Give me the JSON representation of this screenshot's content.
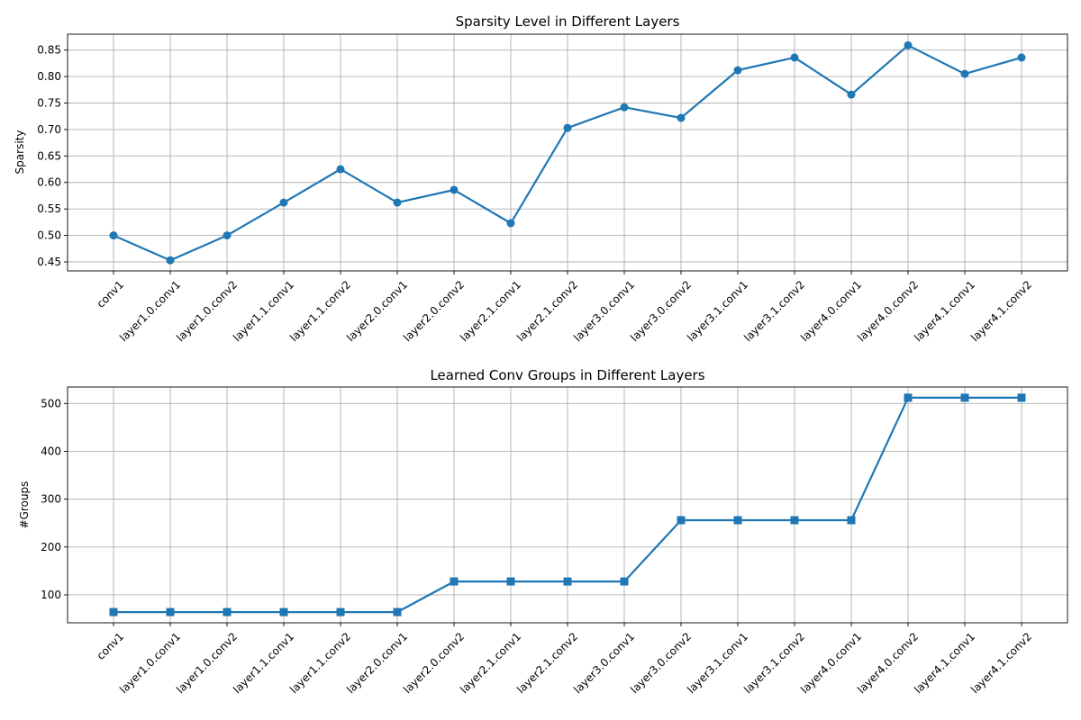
{
  "colors": {
    "series": "#1f77b4",
    "grid": "#b0b0b0"
  },
  "chart_data": [
    {
      "type": "line",
      "title": "Sparsity Level in Different Layers",
      "xlabel": "",
      "ylabel": "Sparsity",
      "marker": "circle",
      "grid": true,
      "ylim": [
        0.433,
        0.88
      ],
      "yticks": [
        0.45,
        0.5,
        0.55,
        0.6,
        0.65,
        0.7,
        0.75,
        0.8,
        0.85
      ],
      "ytick_labels": [
        "0.45",
        "0.50",
        "0.55",
        "0.60",
        "0.65",
        "0.70",
        "0.75",
        "0.80",
        "0.85"
      ],
      "categories": [
        "conv1",
        "layer1.0.conv1",
        "layer1.0.conv2",
        "layer1.1.conv1",
        "layer1.1.conv2",
        "layer2.0.conv1",
        "layer2.0.conv2",
        "layer2.1.conv1",
        "layer2.1.conv2",
        "layer3.0.conv1",
        "layer3.0.conv2",
        "layer3.1.conv1",
        "layer3.1.conv2",
        "layer4.0.conv1",
        "layer4.0.conv2",
        "layer4.1.conv1",
        "layer4.1.conv2"
      ],
      "values": [
        0.5,
        0.453,
        0.5,
        0.562,
        0.625,
        0.562,
        0.586,
        0.523,
        0.703,
        0.742,
        0.722,
        0.812,
        0.836,
        0.766,
        0.859,
        0.805,
        0.836
      ]
    },
    {
      "type": "line",
      "title": "Learned Conv Groups in Different Layers",
      "xlabel": "",
      "ylabel": "#Groups",
      "marker": "square",
      "grid": true,
      "ylim": [
        41.6,
        534.4
      ],
      "yticks": [
        100,
        200,
        300,
        400,
        500
      ],
      "ytick_labels": [
        "100",
        "200",
        "300",
        "400",
        "500"
      ],
      "categories": [
        "conv1",
        "layer1.0.conv1",
        "layer1.0.conv2",
        "layer1.1.conv1",
        "layer1.1.conv2",
        "layer2.0.conv1",
        "layer2.0.conv2",
        "layer2.1.conv1",
        "layer2.1.conv2",
        "layer3.0.conv1",
        "layer3.0.conv2",
        "layer3.1.conv1",
        "layer3.1.conv2",
        "layer4.0.conv1",
        "layer4.0.conv2",
        "layer4.1.conv1",
        "layer4.1.conv2"
      ],
      "values": [
        64,
        64,
        64,
        64,
        64,
        64,
        128,
        128,
        128,
        128,
        256,
        256,
        256,
        256,
        512,
        512,
        512
      ]
    }
  ]
}
